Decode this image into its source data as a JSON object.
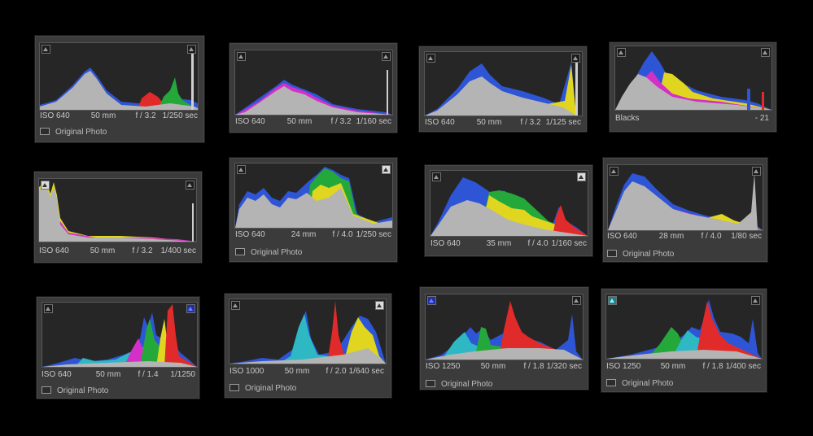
{
  "panels": [
    {
      "iso": "ISO 640",
      "focal": "50 mm",
      "aperture": "f / 3.2",
      "shutter": "1/250 sec",
      "original": "Original Photo",
      "left_clip": "normal",
      "right_clip": "normal",
      "colors": {
        "gray": "#b4b4b4",
        "blue": "#2e55d6",
        "magenta": "#d430c8",
        "red": "#e12a2a",
        "yellow": "#e0d61f",
        "green": "#24a83a"
      }
    },
    {
      "iso": "ISO 640",
      "focal": "50 mm",
      "aperture": "f / 3.2",
      "shutter": "1/160 sec",
      "original": "",
      "left_clip": "normal",
      "right_clip": "normal"
    },
    {
      "iso": "ISO 640",
      "focal": "50 mm",
      "aperture": "f / 3.2",
      "shutter": "1/125 sec",
      "original": "",
      "left_clip": "normal",
      "right_clip": "normal"
    },
    {
      "label": "Blacks",
      "value": "- 21",
      "original": "",
      "left_clip": "normal",
      "right_clip": "normal"
    },
    {
      "iso": "ISO 640",
      "focal": "50 mm",
      "aperture": "f / 3.2",
      "shutter": "1/400 sec",
      "original": "",
      "left_clip": "highlight",
      "right_clip": "normal"
    },
    {
      "iso": "ISO 640",
      "focal": "24 mm",
      "aperture": "f / 4.0",
      "shutter": "1/250 sec",
      "original": "Original Photo",
      "left_clip": "normal",
      "right_clip": "highlight"
    },
    {
      "iso": "ISO 640",
      "focal": "35 mm",
      "aperture": "f / 4.0",
      "shutter": "1/160 sec",
      "original": "",
      "left_clip": "normal",
      "right_clip": "highlight"
    },
    {
      "iso": "ISO 640",
      "focal": "28 mm",
      "aperture": "f / 4.0",
      "shutter": "1/80 sec",
      "original": "Original Photo",
      "left_clip": "normal",
      "right_clip": "normal"
    },
    {
      "iso": "ISO 640",
      "focal": "50 mm",
      "aperture": "f / 1.4",
      "shutter": "1/1250",
      "original": "Original Photo",
      "left_clip": "normal",
      "right_clip": "blue"
    },
    {
      "iso": "ISO 1000",
      "focal": "50 mm",
      "aperture": "f / 2.0",
      "shutter": "1/640 sec",
      "original": "Original Photo",
      "left_clip": "normal",
      "right_clip": "highlight"
    },
    {
      "iso": "ISO 1250",
      "focal": "50 mm",
      "aperture": "f / 1.8",
      "shutter": "1/320 sec",
      "original": "Original Photo",
      "left_clip": "blue",
      "right_clip": "normal"
    },
    {
      "iso": "ISO 1250",
      "focal": "50 mm",
      "aperture": "f / 1.8",
      "shutter": "1/400 sec",
      "original": "Original Photo",
      "left_clip": "cyan",
      "right_clip": "normal"
    }
  ]
}
